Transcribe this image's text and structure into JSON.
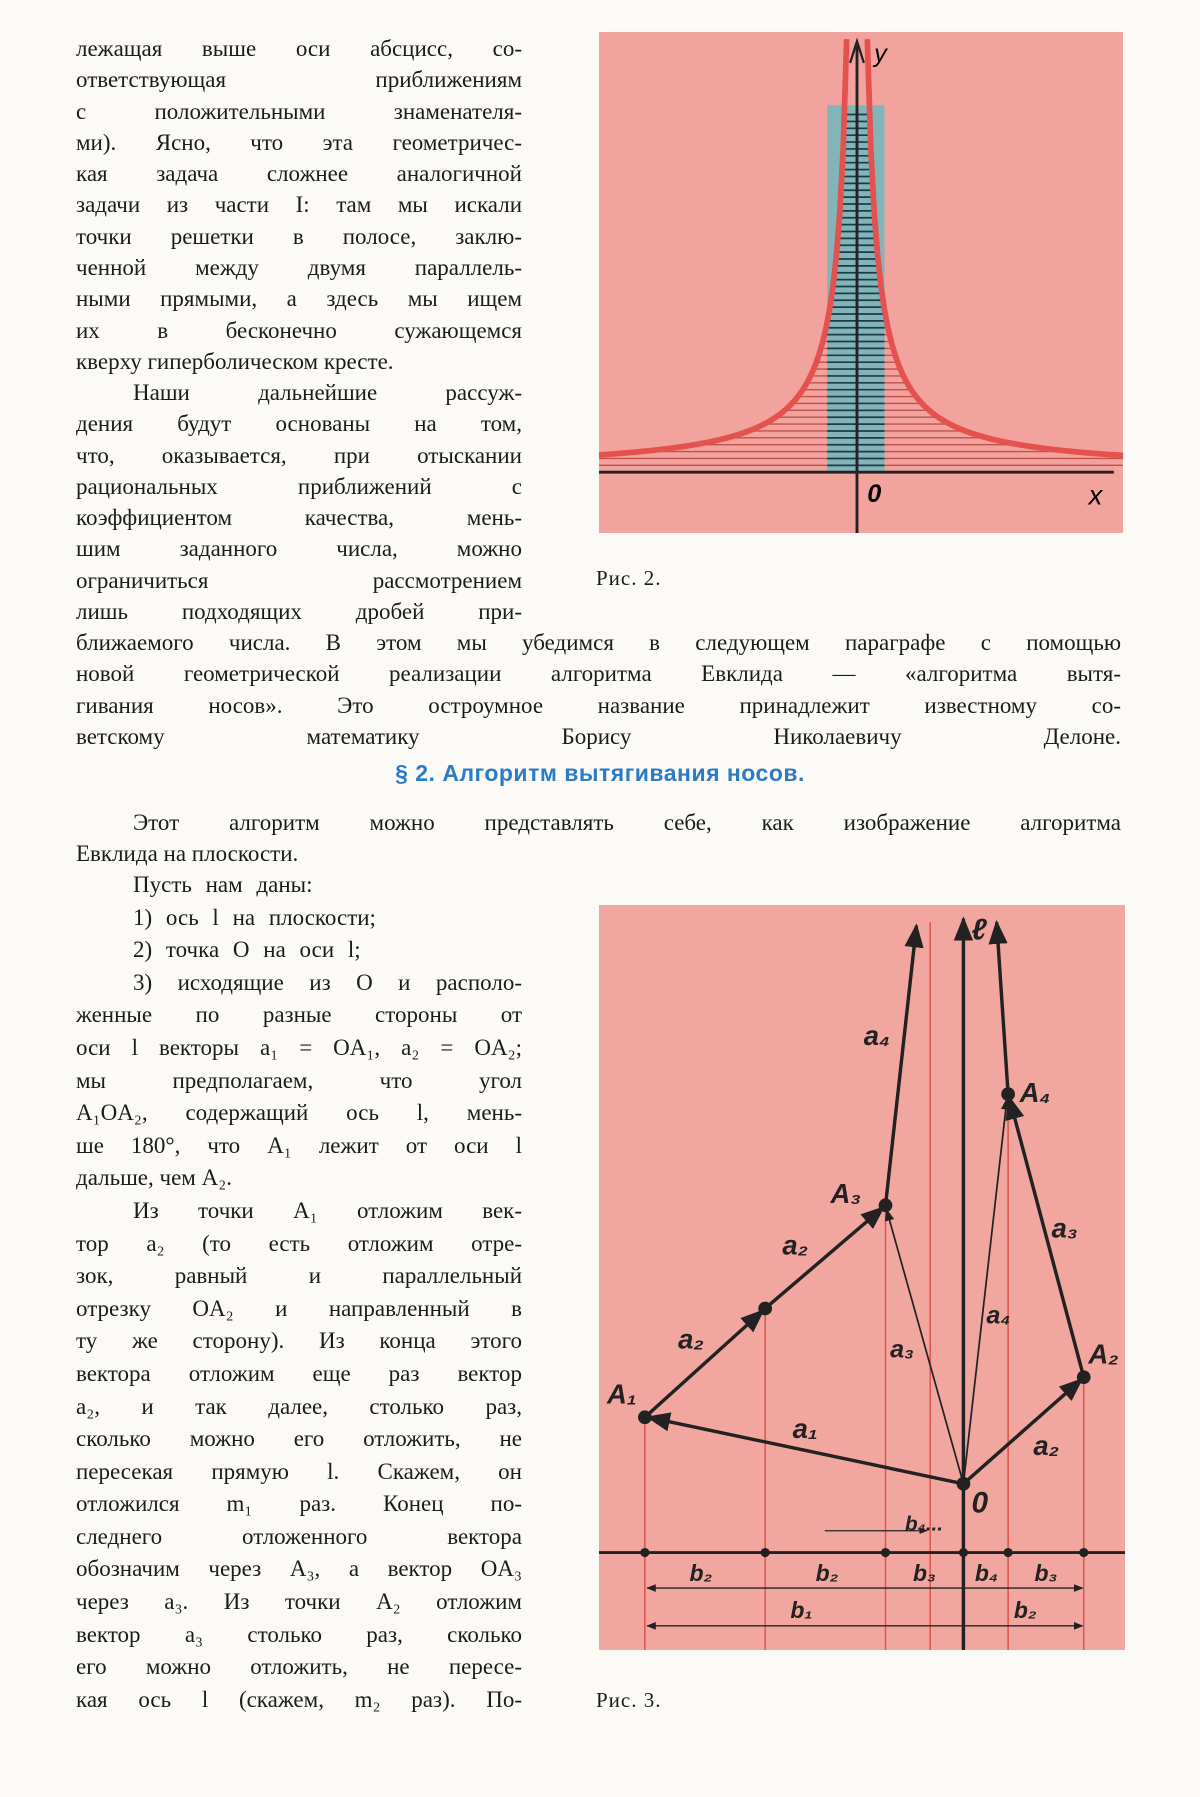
{
  "text": {
    "p1": [
      "лежащая выше оси абсцисс, со-",
      "ответствующая приближениям",
      "с положительными знаменателя-",
      "ми). Ясно, что эта геометричес-",
      "кая задача сложнее аналогичной",
      "задачи из части I: там мы искали",
      "точки решетки в полосе, заклю-",
      "ченной между двумя параллель-",
      "ными прямыми, а здесь мы ищем",
      "их в бесконечно сужающемся",
      "кверху гиперболическом кресте."
    ],
    "p2a": [
      "Наши дальнейшие рассуж-",
      "дения будут основаны на том,",
      "что, оказывается, при отыскании",
      "рациональных приближений с",
      "коэффициентом качества, мень-",
      "шим заданного числа, можно",
      "ограничиться рассмотрением",
      "лишь подходящих дробей при-"
    ],
    "p2b": [
      "ближаемого числа. В этом мы убедимся в следующем параграфе с помощью",
      "новой геометрической реализации алгоритма Евклида — «алгоритма вытя-",
      "гивания носов». Это остроумное название принадлежит известному со-",
      "ветскому математику Борису Николаевичу Делоне."
    ],
    "heading": "§ 2. Алгоритм вытягивания носов.",
    "p3": [
      "Этот алгоритм можно представлять себе, как изображение алгоритма",
      "Евклида на плоскости."
    ],
    "p4": [
      "Пусть нам даны:"
    ],
    "item1": [
      "1) ось l на плоскости;"
    ],
    "item2": [
      "2) точка O на оси l;"
    ],
    "item3": [
      "3) исходящие из O и располо-",
      "женные по разные стороны от",
      "оси l векторы a₁ = OA₁, a₂ = OA₂;",
      "мы предполагаем, что угол",
      "A₁OA₂, содержащий ось l, мень-",
      "ше 180°, что A₁ лежит от оси l",
      "дальше, чем A₂."
    ],
    "p5": [
      "Из точки A₁ отложим век-",
      "тор a₂ (то есть отложим отре-",
      "зок, равный и параллельный",
      "отрезку OA₂ и направленный в",
      "ту же сторону). Из конца этого",
      "вектора отложим еще раз вектор",
      "a₂, и так далее, столько раз,",
      "сколько можно его отложить, не",
      "пересекая прямую l. Скажем, он",
      "отложился m₁ раз. Конец по-",
      "следнего отложенного вектора",
      "обозначим через A₃, а вектор OA₃",
      "через a₃. Из точки A₂ отложим",
      "вектор a₃ столько раз, сколько",
      "его можно отложить, не пересе-",
      "кая ось l (скажем, m₂ раз). По-"
    ]
  },
  "fig2": {
    "caption": "Рис. 2.",
    "y_label": "y",
    "origin_label": "0",
    "x_label": "x"
  },
  "fig3": {
    "caption": "Рис. 3.",
    "labels": [
      "ℓ",
      "a₄",
      "A₄",
      "A₃",
      "a₃",
      "a₂",
      "a₂",
      "a₃",
      "a₄",
      "A₂",
      "A₁",
      "a₁",
      "a₂",
      "0",
      "b₄...",
      "b₂",
      "b₂",
      "b₃",
      "b₄",
      "b₃",
      "b₁",
      "b₂"
    ]
  }
}
